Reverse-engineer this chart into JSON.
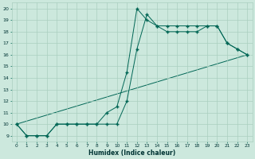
{
  "xlabel": "Humidex (Indice chaleur)",
  "bg_color": "#cce8dd",
  "grid_color": "#aacfbf",
  "line_color": "#006655",
  "xlim": [
    -0.5,
    23.5
  ],
  "ylim": [
    8.5,
    20.5
  ],
  "xticks": [
    0,
    1,
    2,
    3,
    4,
    5,
    6,
    7,
    8,
    9,
    10,
    11,
    12,
    13,
    14,
    15,
    16,
    17,
    18,
    19,
    20,
    21,
    22,
    23
  ],
  "yticks": [
    9,
    10,
    11,
    12,
    13,
    14,
    15,
    16,
    17,
    18,
    19,
    20
  ],
  "line1_x": [
    0,
    1,
    2,
    3,
    4,
    5,
    6,
    7,
    8,
    9,
    10,
    11,
    12,
    13,
    14,
    15,
    16,
    17,
    18,
    19,
    20,
    21,
    22,
    23
  ],
  "line1_y": [
    10,
    9,
    9,
    9,
    10,
    10,
    10,
    10,
    10,
    11,
    11.5,
    14.5,
    20,
    19,
    18.5,
    18.5,
    18.5,
    18.5,
    18.5,
    18.5,
    18.5,
    17,
    16.5,
    16
  ],
  "line2_x": [
    0,
    1,
    2,
    3,
    4,
    5,
    6,
    7,
    8,
    9,
    10,
    11,
    12,
    13,
    14,
    15,
    16,
    17,
    18,
    19,
    20,
    21,
    22,
    23
  ],
  "line2_y": [
    10,
    9,
    9,
    9,
    10,
    10,
    10,
    10,
    10,
    10,
    10,
    12,
    16.5,
    19.5,
    18.5,
    18,
    18,
    18,
    18,
    18.5,
    18.5,
    17,
    16.5,
    16
  ],
  "line3_x": [
    0,
    23
  ],
  "line3_y": [
    10,
    16
  ]
}
